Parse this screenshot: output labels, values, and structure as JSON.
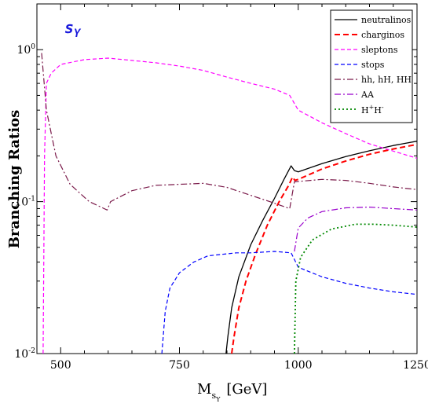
{
  "chart_data": {
    "type": "line",
    "panel_label": "s",
    "panel_label_sub": "Y",
    "xlabel": "M",
    "xlabel_sub1": "s",
    "xlabel_sub2": "Y",
    "xlabel_unit": "[GeV]",
    "ylabel": "Branching Ratios",
    "xlim": [
      450,
      1250
    ],
    "ylim": [
      0.01,
      2
    ],
    "yscale": "log",
    "x_ticks": [
      500,
      750,
      1000,
      1250
    ],
    "x_tick_labels": [
      "500",
      "750",
      "1000",
      "1250"
    ],
    "y_ticks": [
      0.01,
      0.1,
      1
    ],
    "y_tick_label_bases": [
      "10",
      "10",
      "10"
    ],
    "y_tick_label_exps": [
      "-2",
      "-1",
      "0"
    ],
    "legend_position": "top-right",
    "series": [
      {
        "name": "neutralinos",
        "color": "#000000",
        "dash": "",
        "width": 1.3,
        "points": [
          [
            848,
            0.01
          ],
          [
            852,
            0.013
          ],
          [
            860,
            0.02
          ],
          [
            875,
            0.032
          ],
          [
            900,
            0.052
          ],
          [
            925,
            0.075
          ],
          [
            950,
            0.105
          ],
          [
            970,
            0.14
          ],
          [
            985,
            0.172
          ],
          [
            992,
            0.16
          ],
          [
            1000,
            0.157
          ],
          [
            1050,
            0.178
          ],
          [
            1100,
            0.198
          ],
          [
            1150,
            0.216
          ],
          [
            1200,
            0.234
          ],
          [
            1250,
            0.25
          ]
        ]
      },
      {
        "name": "charginos",
        "color": "#ff0000",
        "dash": "7,4",
        "width": 2,
        "points": [
          [
            860,
            0.01
          ],
          [
            865,
            0.013
          ],
          [
            875,
            0.02
          ],
          [
            890,
            0.03
          ],
          [
            910,
            0.045
          ],
          [
            935,
            0.07
          ],
          [
            960,
            0.1
          ],
          [
            980,
            0.128
          ],
          [
            988,
            0.145
          ],
          [
            993,
            0.138
          ],
          [
            1000,
            0.14
          ],
          [
            1050,
            0.164
          ],
          [
            1100,
            0.185
          ],
          [
            1150,
            0.205
          ],
          [
            1200,
            0.222
          ],
          [
            1250,
            0.238
          ]
        ]
      },
      {
        "name": "sleptons",
        "color": "#ff00ff",
        "dash": "5,3",
        "width": 1.2,
        "points": [
          [
            463,
            0.01
          ],
          [
            466,
            0.2
          ],
          [
            470,
            0.6
          ],
          [
            480,
            0.7
          ],
          [
            500,
            0.8
          ],
          [
            550,
            0.86
          ],
          [
            600,
            0.88
          ],
          [
            650,
            0.85
          ],
          [
            700,
            0.82
          ],
          [
            750,
            0.78
          ],
          [
            800,
            0.73
          ],
          [
            850,
            0.66
          ],
          [
            900,
            0.6
          ],
          [
            950,
            0.55
          ],
          [
            982,
            0.5
          ],
          [
            1000,
            0.4
          ],
          [
            1050,
            0.33
          ],
          [
            1100,
            0.28
          ],
          [
            1150,
            0.24
          ],
          [
            1200,
            0.215
          ],
          [
            1250,
            0.193
          ]
        ]
      },
      {
        "name": "stops",
        "color": "#0000ff",
        "dash": "5,3",
        "width": 1.2,
        "points": [
          [
            713,
            0.01
          ],
          [
            720,
            0.019
          ],
          [
            730,
            0.027
          ],
          [
            750,
            0.034
          ],
          [
            780,
            0.04
          ],
          [
            810,
            0.044
          ],
          [
            840,
            0.045
          ],
          [
            870,
            0.046
          ],
          [
            900,
            0.046
          ],
          [
            950,
            0.047
          ],
          [
            985,
            0.046
          ],
          [
            1000,
            0.037
          ],
          [
            1050,
            0.032
          ],
          [
            1100,
            0.029
          ],
          [
            1150,
            0.027
          ],
          [
            1200,
            0.0255
          ],
          [
            1250,
            0.0245
          ]
        ]
      },
      {
        "name": "hh, hH, HH",
        "color": "#7a1a4a",
        "dash": "8,3,2,3",
        "width": 1.2,
        "points": [
          [
            460,
            0.95
          ],
          [
            470,
            0.4
          ],
          [
            490,
            0.2
          ],
          [
            520,
            0.13
          ],
          [
            560,
            0.1
          ],
          [
            598,
            0.088
          ],
          [
            605,
            0.1
          ],
          [
            650,
            0.118
          ],
          [
            700,
            0.128
          ],
          [
            750,
            0.13
          ],
          [
            800,
            0.132
          ],
          [
            850,
            0.124
          ],
          [
            900,
            0.11
          ],
          [
            940,
            0.1
          ],
          [
            982,
            0.09
          ],
          [
            992,
            0.135
          ],
          [
            1050,
            0.14
          ],
          [
            1100,
            0.138
          ],
          [
            1150,
            0.132
          ],
          [
            1200,
            0.125
          ],
          [
            1250,
            0.12
          ]
        ]
      },
      {
        "name": "AA",
        "color": "#9900cc",
        "dash": "8,3,2,3",
        "width": 1.2,
        "points": [
          [
            992,
            0.047
          ],
          [
            1000,
            0.067
          ],
          [
            1020,
            0.078
          ],
          [
            1050,
            0.086
          ],
          [
            1100,
            0.091
          ],
          [
            1150,
            0.092
          ],
          [
            1200,
            0.09
          ],
          [
            1250,
            0.088
          ]
        ]
      },
      {
        "name": "H+H-",
        "color": "#008800",
        "dash": "2,3",
        "width": 1.8,
        "points": [
          [
            992,
            0.01
          ],
          [
            995,
            0.03
          ],
          [
            1005,
            0.043
          ],
          [
            1030,
            0.056
          ],
          [
            1070,
            0.066
          ],
          [
            1120,
            0.071
          ],
          [
            1160,
            0.071
          ],
          [
            1200,
            0.07
          ],
          [
            1250,
            0.068
          ]
        ]
      }
    ],
    "legend": {
      "labels": [
        "neutralinos",
        "charginos",
        "sleptons",
        "stops",
        "hh, hH, HH",
        "AA",
        "H",
        "+",
        "H",
        "-"
      ]
    }
  }
}
